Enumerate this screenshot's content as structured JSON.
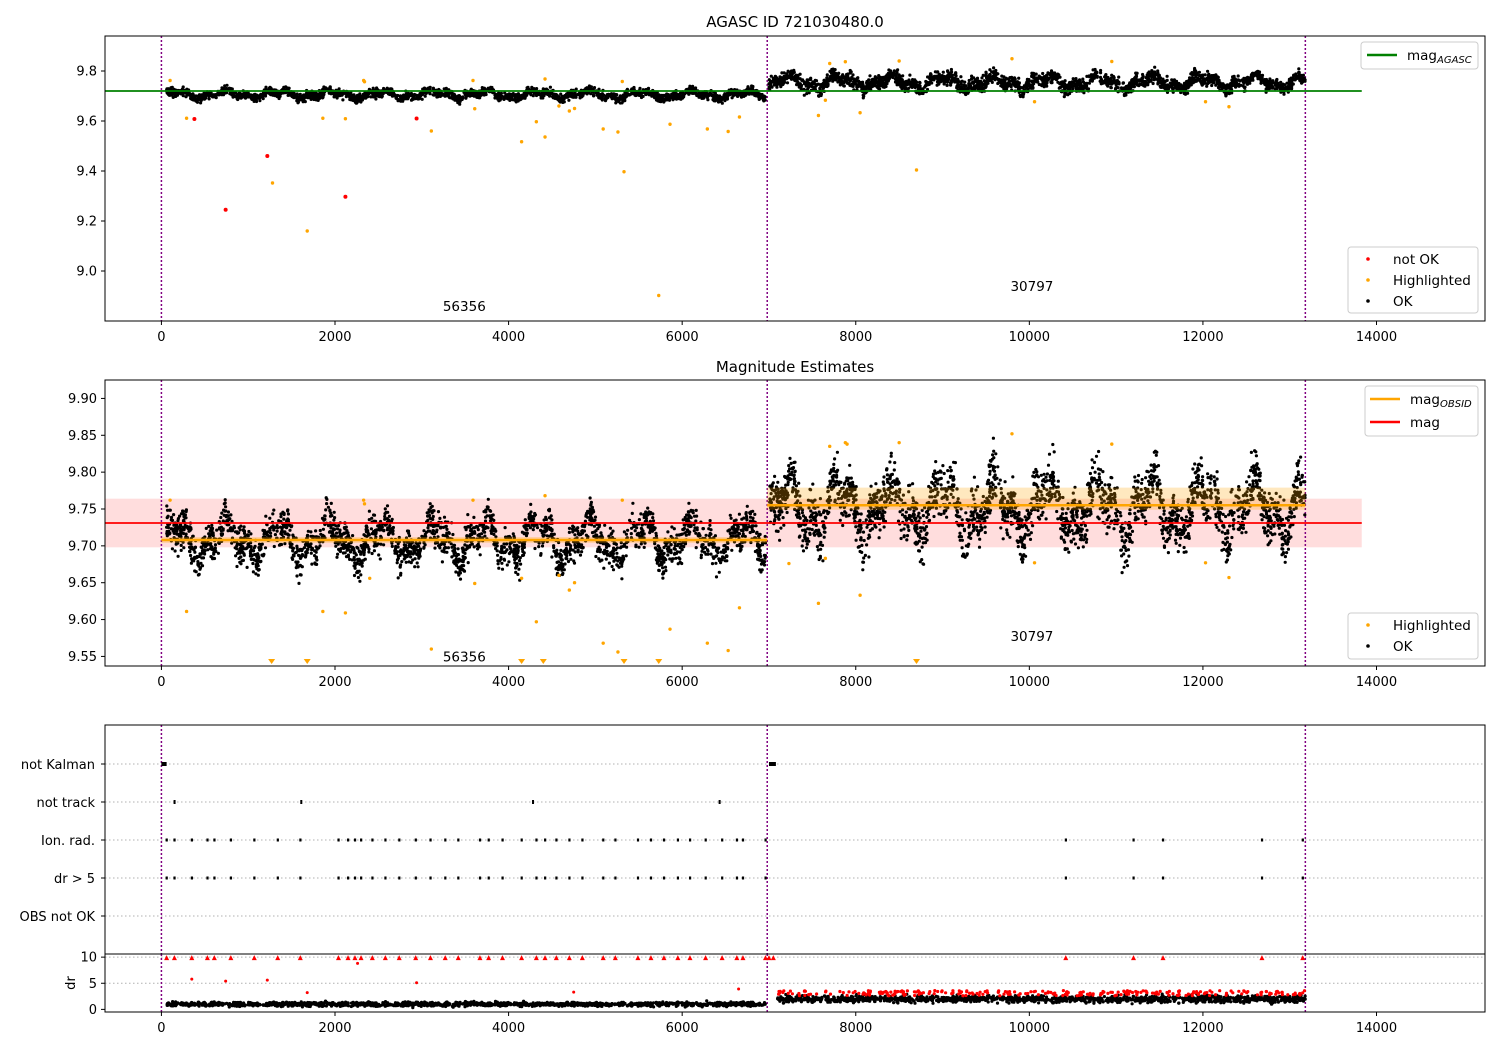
{
  "figure": {
    "background": "#ffffff"
  },
  "chart_data": [
    {
      "type": "scatter",
      "title": "AGASC ID 721030480.0",
      "xlabel": "",
      "ylabel": "",
      "xlim": [
        -650,
        15250
      ],
      "ylim": [
        8.8,
        9.94
      ],
      "xticks": [
        0,
        2000,
        4000,
        6000,
        8000,
        10000,
        12000,
        14000
      ],
      "yticks": [
        9.0,
        9.2,
        9.4,
        9.6,
        9.8
      ],
      "ytick_labels": [
        "9.0",
        "9.2",
        "9.4",
        "9.6",
        "9.8"
      ],
      "obs_boundaries": [
        0,
        6980,
        13180
      ],
      "obs_labels": [
        {
          "text": "56356",
          "x": 3490,
          "y": 8.86
        },
        {
          "text": "30797",
          "x": 10030,
          "y": 8.94
        }
      ],
      "reference_lines": [
        {
          "name": "mag_AGASC",
          "y": 9.72,
          "x_range": [
            -650,
            13830
          ],
          "color": "#008000"
        }
      ],
      "series_ok": {
        "color": "#000000",
        "segments": [
          {
            "x_range": [
              60,
              6960
            ],
            "base": 9.706,
            "amp": 0.012,
            "noise": 0.012
          },
          {
            "x_range": [
              7000,
              13180
            ],
            "base": 9.755,
            "amp": 0.02,
            "noise": 0.02
          }
        ]
      },
      "highlighted": {
        "color": "#ffa500",
        "points": [
          [
            100,
            9.762
          ],
          [
            290,
            9.611
          ],
          [
            1860,
            9.611
          ],
          [
            2120,
            9.609
          ],
          [
            2330,
            9.762
          ],
          [
            2340,
            9.757
          ],
          [
            3110,
            9.56
          ],
          [
            3590,
            9.762
          ],
          [
            3610,
            9.649
          ],
          [
            4150,
            9.517
          ],
          [
            4320,
            9.597
          ],
          [
            4420,
            9.536
          ],
          [
            4420,
            9.768
          ],
          [
            4580,
            9.66
          ],
          [
            4700,
            9.64
          ],
          [
            4760,
            9.65
          ],
          [
            5090,
            9.568
          ],
          [
            5260,
            9.556
          ],
          [
            5330,
            9.397
          ],
          [
            5310,
            9.758
          ],
          [
            5730,
            8.902
          ],
          [
            5860,
            9.587
          ],
          [
            6290,
            9.568
          ],
          [
            6530,
            9.558
          ],
          [
            6660,
            9.616
          ],
          [
            7570,
            9.622
          ],
          [
            7650,
            9.683
          ],
          [
            7700,
            9.83
          ],
          [
            7880,
            9.837
          ],
          [
            8050,
            9.633
          ],
          [
            8500,
            9.84
          ],
          [
            8700,
            9.404
          ],
          [
            9800,
            9.849
          ],
          [
            10060,
            9.677
          ],
          [
            10950,
            9.838
          ],
          [
            12030,
            9.677
          ],
          [
            12300,
            9.657
          ],
          [
            1280,
            9.352
          ],
          [
            1680,
            9.16
          ]
        ]
      },
      "not_ok": {
        "color": "#ff0000",
        "points": [
          [
            380,
            9.608
          ],
          [
            740,
            9.245
          ],
          [
            1220,
            9.46
          ],
          [
            2120,
            9.297
          ],
          [
            2940,
            9.61
          ]
        ]
      },
      "legend_lines": [
        {
          "label_main": "mag",
          "label_sub": "AGASC",
          "color": "#008000"
        }
      ],
      "legend_markers": [
        {
          "label": "not OK",
          "color": "#ff0000"
        },
        {
          "label": "Highlighted",
          "color": "#ffa500"
        },
        {
          "label": "OK",
          "color": "#000000"
        }
      ]
    },
    {
      "type": "scatter",
      "title": "Magnitude Estimates",
      "xlabel": "",
      "ylabel": "",
      "xlim": [
        -650,
        15250
      ],
      "ylim": [
        9.537,
        9.925
      ],
      "xticks": [
        0,
        2000,
        4000,
        6000,
        8000,
        10000,
        12000,
        14000
      ],
      "yticks": [
        9.55,
        9.6,
        9.65,
        9.7,
        9.75,
        9.8,
        9.85,
        9.9
      ],
      "ytick_labels": [
        "9.55",
        "9.60",
        "9.65",
        "9.70",
        "9.75",
        "9.80",
        "9.85",
        "9.90"
      ],
      "obs_boundaries": [
        0,
        6980,
        13180
      ],
      "obs_labels": [
        {
          "text": "56356",
          "x": 3490,
          "y": 9.55
        },
        {
          "text": "30797",
          "x": 10030,
          "y": 9.578
        }
      ],
      "mag_band": {
        "y_range": [
          9.698,
          9.764
        ],
        "x_range": [
          -650,
          13830
        ],
        "color": "#ffdddd"
      },
      "mag_line": {
        "name": "mag",
        "y": 9.731,
        "x_range": [
          -650,
          13830
        ],
        "color": "#ff0000"
      },
      "obsid_lines": [
        {
          "x_range": [
            0,
            6980
          ],
          "y": 9.708,
          "band": [
            9.704,
            9.712
          ]
        },
        {
          "x_range": [
            6980,
            13180
          ],
          "y": 9.755,
          "band": [
            9.749,
            9.779
          ]
        }
      ],
      "obsid_color": "#ffa500",
      "series_ok": {
        "color": "#000000",
        "segments": [
          {
            "x_range": [
              60,
              6960
            ],
            "base": 9.708,
            "amp": 0.02,
            "noise": 0.018
          },
          {
            "x_range": [
              7000,
              13180
            ],
            "base": 9.752,
            "amp": 0.03,
            "noise": 0.025
          }
        ]
      },
      "highlighted": {
        "color": "#ffa500",
        "points": [
          [
            100,
            9.762
          ],
          [
            290,
            9.611
          ],
          [
            1860,
            9.611
          ],
          [
            2120,
            9.609
          ],
          [
            2330,
            9.762
          ],
          [
            2340,
            9.757
          ],
          [
            2400,
            9.656
          ],
          [
            3110,
            9.56
          ],
          [
            3590,
            9.762
          ],
          [
            3610,
            9.649
          ],
          [
            4150,
            9.656
          ],
          [
            4320,
            9.597
          ],
          [
            4420,
            9.768
          ],
          [
            4580,
            9.66
          ],
          [
            4700,
            9.64
          ],
          [
            4760,
            9.65
          ],
          [
            5090,
            9.568
          ],
          [
            5260,
            9.556
          ],
          [
            5310,
            9.762
          ],
          [
            5860,
            9.587
          ],
          [
            6290,
            9.568
          ],
          [
            6530,
            9.558
          ],
          [
            6660,
            9.616
          ],
          [
            7230,
            9.676
          ],
          [
            7570,
            9.622
          ],
          [
            7650,
            9.683
          ],
          [
            7700,
            9.835
          ],
          [
            7880,
            9.84
          ],
          [
            7900,
            9.838
          ],
          [
            8050,
            9.633
          ],
          [
            8500,
            9.84
          ],
          [
            9800,
            9.852
          ],
          [
            10060,
            9.677
          ],
          [
            10950,
            9.838
          ],
          [
            12030,
            9.677
          ],
          [
            12300,
            9.657
          ]
        ]
      },
      "clipped_points_x": [
        1270,
        1680,
        4150,
        4400,
        5330,
        5730,
        8700
      ],
      "legend_lines": [
        {
          "label_main": "mag",
          "label_sub": "OBSID",
          "color": "#ffa500"
        },
        {
          "label_main": "mag",
          "label_sub": "",
          "color": "#ff0000"
        }
      ],
      "legend_markers": [
        {
          "label": "Highlighted",
          "color": "#ffa500"
        },
        {
          "label": "OK",
          "color": "#000000"
        }
      ]
    },
    {
      "type": "scatter",
      "title": "",
      "xlabel": "",
      "ylabel": "",
      "xlim": [
        -650,
        15250
      ],
      "xticks": [
        0,
        2000,
        4000,
        6000,
        8000,
        10000,
        12000,
        14000
      ],
      "obs_boundaries": [
        0,
        6980,
        13180
      ],
      "flag_rows": [
        "not Kalman",
        "not track",
        "Ion. rad.",
        "dr > 5",
        "OBS not OK"
      ],
      "flags": {
        "not Kalman": [
          [
            0,
            60
          ],
          [
            7000,
            7080
          ]
        ],
        "not track": [
          [
            140,
            150
          ],
          [
            1600,
            1610
          ],
          [
            4270,
            4280
          ],
          [
            6420,
            6430
          ]
        ],
        "Ion. rad.": [
          60,
          150,
          350,
          530,
          610,
          800,
          1070,
          1340,
          1600,
          2040,
          2150,
          2230,
          2300,
          2430,
          2580,
          2740,
          2930,
          3100,
          3270,
          3420,
          3670,
          3770,
          3930,
          4150,
          4320,
          4420,
          4550,
          4700,
          4850,
          5090,
          5230,
          5490,
          5640,
          5790,
          5950,
          6090,
          6270,
          6460,
          6630,
          6700,
          6960,
          10420,
          11200,
          11540,
          12680,
          13150
        ],
        "dr > 5": [
          60,
          150,
          350,
          530,
          610,
          800,
          1070,
          1340,
          1600,
          2040,
          2150,
          2230,
          2300,
          2430,
          2580,
          2740,
          2930,
          3100,
          3270,
          3420,
          3670,
          3770,
          3930,
          4150,
          4320,
          4420,
          4550,
          4700,
          4850,
          5090,
          5230,
          5490,
          5640,
          5790,
          5950,
          6090,
          6270,
          6460,
          6630,
          6700,
          6960,
          10420,
          11200,
          11540,
          12680,
          13150
        ],
        "OBS not OK": []
      },
      "dr": {
        "ylabel": "dr",
        "ylim": [
          -0.5,
          10.6
        ],
        "yticks": [
          0,
          5,
          10
        ],
        "ytick_labels": [
          "0",
          "5",
          "10"
        ],
        "clip_points_x": [
          60,
          150,
          350,
          530,
          610,
          800,
          1070,
          1340,
          1600,
          2040,
          2150,
          2230,
          2300,
          2430,
          2580,
          2740,
          2930,
          3100,
          3270,
          3420,
          3670,
          3770,
          3930,
          4150,
          4320,
          4420,
          4550,
          4700,
          4850,
          5090,
          5230,
          5490,
          5640,
          5790,
          5950,
          6090,
          6270,
          6460,
          6630,
          6700,
          6960,
          7000,
          7050,
          10420,
          11200,
          11540,
          12680,
          13150
        ],
        "outliers": [
          [
            350,
            5.8
          ],
          [
            740,
            5.4
          ],
          [
            1220,
            5.6
          ],
          [
            1680,
            3.2
          ],
          [
            2260,
            8.8
          ],
          [
            2940,
            5.1
          ],
          [
            4750,
            3.3
          ],
          [
            6650,
            3.9
          ]
        ],
        "ok_color": "#000000",
        "flag_color": "#ff0000",
        "segments": [
          {
            "x_range": [
              60,
              6960
            ],
            "base": 1.0,
            "noise": 0.5
          },
          {
            "x_range": [
              7100,
              13180
            ],
            "base": 2.0,
            "noise": 0.8
          }
        ]
      }
    }
  ]
}
